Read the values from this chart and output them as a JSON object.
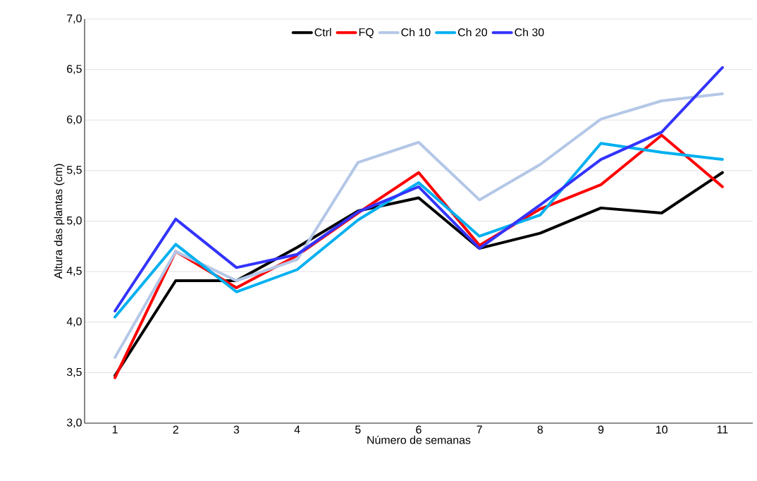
{
  "chart_data": {
    "type": "line",
    "xlabel": "Número de semanas",
    "ylabel": "Altura das plantas (cm)",
    "categories": [
      "1",
      "2",
      "3",
      "4",
      "5",
      "6",
      "7",
      "8",
      "9",
      "10",
      "11"
    ],
    "ylim": [
      3.0,
      7.0
    ],
    "yticks": [
      {
        "value": 3.0,
        "label": "3,0"
      },
      {
        "value": 3.5,
        "label": "3,5"
      },
      {
        "value": 4.0,
        "label": "4,0"
      },
      {
        "value": 4.5,
        "label": "4,5"
      },
      {
        "value": 5.0,
        "label": "5,0"
      },
      {
        "value": 5.5,
        "label": "5,5"
      },
      {
        "value": 6.0,
        "label": "6,0"
      },
      {
        "value": 6.5,
        "label": "6,5"
      },
      {
        "value": 7.0,
        "label": "7,0"
      }
    ],
    "grid": "y",
    "legend": "top",
    "marker": "none",
    "line_style": "solid",
    "series": [
      {
        "name": "Ctrl",
        "color": "#000000",
        "values": [
          3.47,
          4.41,
          4.41,
          4.74,
          5.1,
          5.23,
          4.73,
          4.88,
          5.13,
          5.08,
          5.48
        ]
      },
      {
        "name": "FQ",
        "color": "#ff0000",
        "values": [
          3.45,
          4.7,
          4.34,
          4.66,
          5.08,
          5.48,
          4.76,
          5.12,
          5.36,
          5.85,
          5.34
        ]
      },
      {
        "name": "Ch 10",
        "color": "#b4c7e7",
        "values": [
          3.65,
          4.7,
          4.41,
          4.62,
          5.58,
          5.78,
          5.21,
          5.56,
          6.01,
          6.19,
          6.26
        ]
      },
      {
        "name": "Ch 20",
        "color": "#00b0f0",
        "values": [
          4.05,
          4.77,
          4.3,
          4.52,
          5.01,
          5.38,
          4.85,
          5.06,
          5.77,
          5.68,
          5.61
        ]
      },
      {
        "name": "Ch 30",
        "color": "#3333ff",
        "values": [
          4.11,
          5.02,
          4.54,
          4.67,
          5.09,
          5.34,
          4.73,
          5.16,
          5.61,
          5.88,
          6.52
        ]
      }
    ]
  }
}
